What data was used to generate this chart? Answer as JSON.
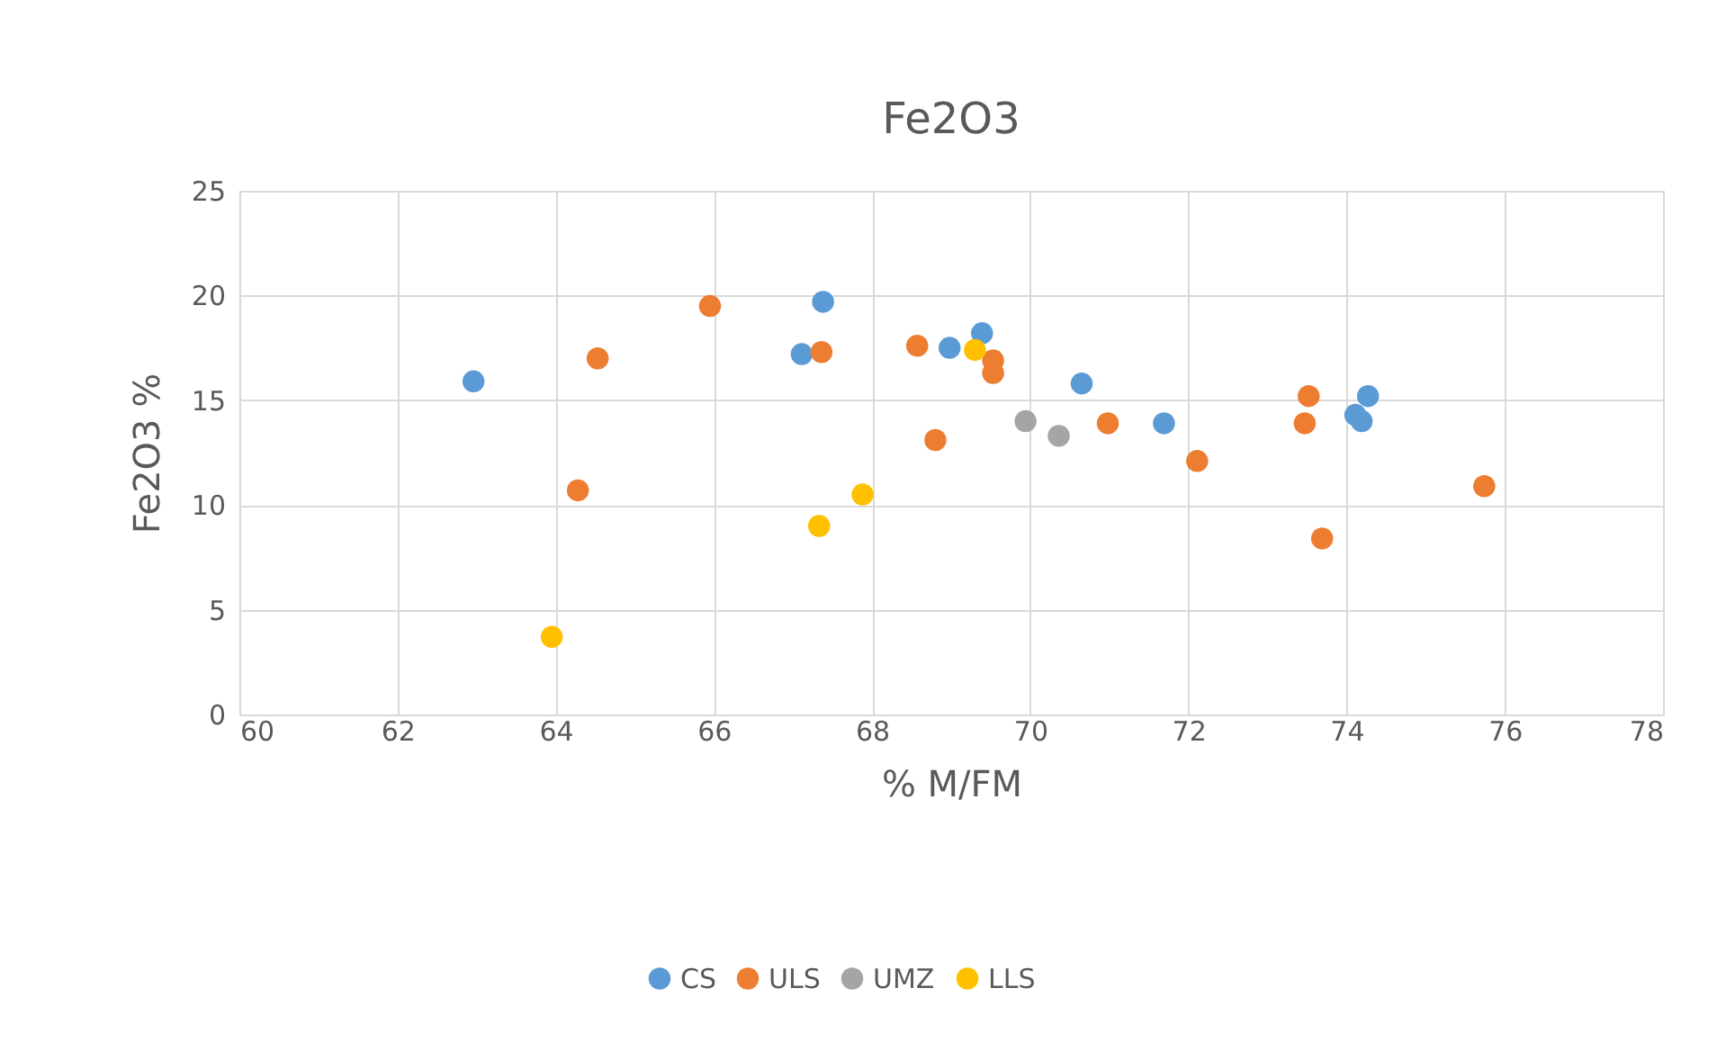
{
  "chart_data": {
    "type": "scatter",
    "title": "Fe2O3",
    "xlabel": "% M/FM",
    "ylabel": "Fe2O3 %",
    "xlim": [
      60,
      78
    ],
    "xticks": [
      60,
      62,
      64,
      66,
      68,
      70,
      72,
      74,
      76,
      78
    ],
    "ylim": [
      0,
      25
    ],
    "yticks": [
      0,
      5,
      10,
      15,
      20,
      25
    ],
    "grid": true,
    "legend": "bottom",
    "marker": "circle",
    "series": [
      {
        "name": "CS",
        "color": "#5b9bd5",
        "x": [
          62.96,
          67.11,
          67.38,
          68.98,
          69.39,
          70.65,
          71.69,
          74.27,
          74.11,
          74.19
        ],
        "values": [
          15.9,
          17.2,
          19.7,
          17.5,
          18.2,
          15.8,
          13.9,
          15.2,
          14.3,
          14.0
        ]
      },
      {
        "name": "ULS",
        "color": "#ed7d31",
        "x": [
          64.53,
          65.95,
          67.36,
          68.57,
          64.28,
          68.8,
          69.53,
          69.53,
          70.98,
          72.11,
          73.52,
          73.47,
          73.69,
          75.74
        ],
        "values": [
          17.0,
          19.5,
          17.3,
          17.6,
          10.7,
          13.1,
          16.9,
          16.3,
          13.9,
          12.1,
          15.2,
          13.9,
          8.4,
          10.9
        ]
      },
      {
        "name": "UMZ",
        "color": "#a5a5a5",
        "x": [
          69.94,
          70.36
        ],
        "values": [
          14.0,
          13.3
        ]
      },
      {
        "name": "LLS",
        "color": "#ffc000",
        "x": [
          63.95,
          67.33,
          67.88,
          69.3
        ],
        "values": [
          3.7,
          9.0,
          10.5,
          17.4
        ]
      }
    ]
  }
}
